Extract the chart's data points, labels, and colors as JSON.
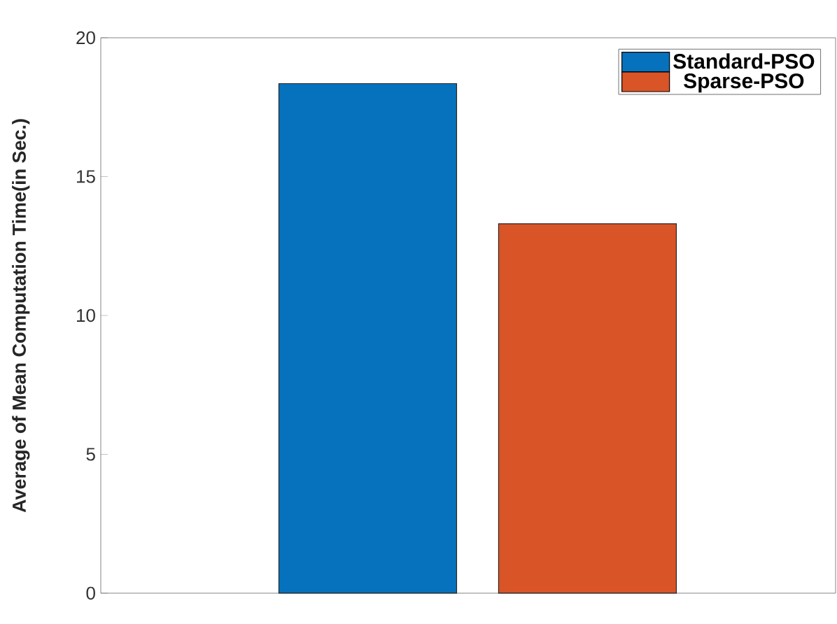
{
  "chart_data": {
    "type": "bar",
    "ylabel": "Average of Mean Computation Time(in Sec.)",
    "categories": [
      null
    ],
    "series": [
      {
        "name": "Standard-PSO",
        "color": "#0672bd",
        "values": [
          18.35
        ]
      },
      {
        "name": "Sparse-PSO",
        "color": "#d95427",
        "values": [
          13.3
        ]
      }
    ],
    "ylim": [
      0,
      20
    ],
    "yticks": [
      0,
      5,
      10,
      15,
      20
    ],
    "legend": "top right",
    "tick_labels": "y"
  }
}
